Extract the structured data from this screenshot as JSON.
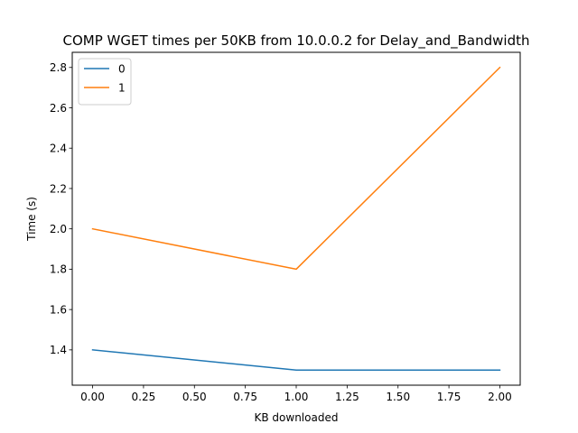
{
  "chart_data": {
    "type": "line",
    "title": "COMP WGET times per 50KB from 10.0.0.2 for Delay_and_Bandwidth",
    "xlabel": "KB downloaded",
    "ylabel": "Time (s)",
    "xlim": [
      -0.1,
      2.1
    ],
    "ylim": [
      1.225,
      2.875
    ],
    "x_ticks": [
      "0.00",
      "0.25",
      "0.50",
      "0.75",
      "1.00",
      "1.25",
      "1.50",
      "1.75",
      "2.00"
    ],
    "y_ticks": [
      "1.4",
      "1.6",
      "1.8",
      "2.0",
      "2.2",
      "2.4",
      "2.6",
      "2.8"
    ],
    "x": [
      0,
      1,
      2
    ],
    "series": [
      {
        "name": "0",
        "values": [
          1.4,
          1.3,
          1.3
        ],
        "color": "#1f77b4"
      },
      {
        "name": "1",
        "values": [
          2.0,
          1.8,
          2.8
        ],
        "color": "#ff7f0e"
      }
    ],
    "grid": false,
    "legend_position": "top-left"
  }
}
